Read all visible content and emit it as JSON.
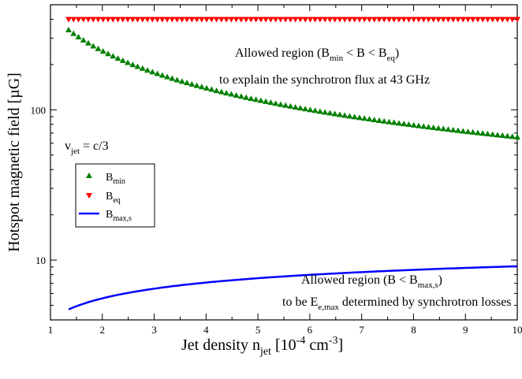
{
  "chart_data": {
    "type": "scatter",
    "xlabel": {
      "main": "Jet  density n",
      "sub": "jet",
      "unit_open": " [10",
      "sup1": "-4",
      "unit_mid": " cm",
      "sup2": "-3",
      "unit_close": "]"
    },
    "ylabel": "Hotspot magnetic field [µG]",
    "xlim": [
      1,
      10
    ],
    "ylim": [
      4,
      500
    ],
    "yscale": "log",
    "x_ticks": [
      "1",
      "2",
      "3",
      "4",
      "5",
      "6",
      "7",
      "8",
      "9",
      "10"
    ],
    "y_ticks": [
      {
        "value": 10,
        "label": "10"
      },
      {
        "value": 100,
        "label": "100"
      }
    ],
    "series": [
      {
        "name": "B",
        "sub": "min",
        "marker": "triangle-up",
        "color": "#008000",
        "x_start": 1.35,
        "x_end": 10,
        "y_at_start": 340,
        "power": -0.82
      },
      {
        "name": "B",
        "sub": "eq",
        "marker": "triangle-down",
        "color": "#ff0000",
        "x_start": 1.35,
        "x_end": 10,
        "y_const": 400
      },
      {
        "name": "B",
        "sub": "max,s",
        "marker": "line",
        "color": "#0000ff",
        "x_start": 1.35,
        "x_end": 10,
        "y_at_start": 4.7,
        "y_at_end": 9.1
      }
    ],
    "legend": {
      "position": "left-middle"
    },
    "annotations": {
      "vjet": {
        "main": "v",
        "sub": "jet",
        "rest": " = c/3"
      },
      "upper1": {
        "a": "Allowed region (B",
        "sub1": "min",
        "b": " < B < B",
        "sub2": "eq",
        "c": ")"
      },
      "upper2": "to explain the synchrotron flux at 43 GHz",
      "lower1": {
        "a": "Allowed region (B < B",
        "sub": "max,s",
        "b": ")"
      },
      "lower2": {
        "a": "to be E",
        "sub": "e,max",
        "b": " determined by synchrotron losses"
      }
    }
  }
}
